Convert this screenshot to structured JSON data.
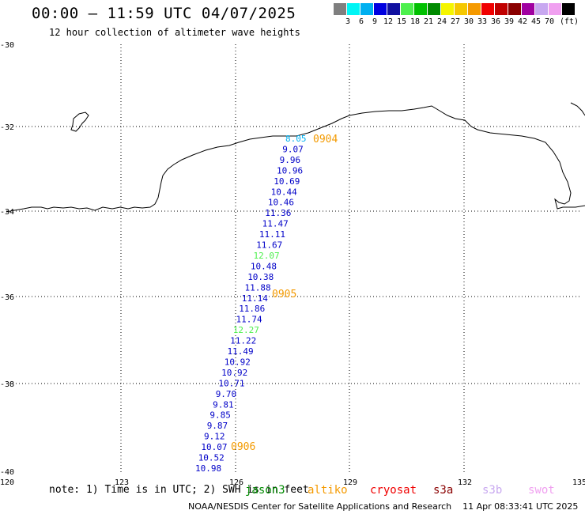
{
  "header": {
    "title": "00:00 – 11:59 UTC 04/07/2025",
    "subtitle": "12 hour collection of altimeter wave heights"
  },
  "color_scale": {
    "unit": "(ft)",
    "swatches": [
      {
        "color": "#7f7f7f",
        "label": ""
      },
      {
        "color": "#00f5f5",
        "label": "3"
      },
      {
        "color": "#00b0f0",
        "label": "6"
      },
      {
        "color": "#0000e0",
        "label": "9"
      },
      {
        "color": "#1010a0",
        "label": "12"
      },
      {
        "color": "#4cf04c",
        "label": "15"
      },
      {
        "color": "#00c000",
        "label": "18"
      },
      {
        "color": "#008a00",
        "label": "21"
      },
      {
        "color": "#f5f500",
        "label": "24"
      },
      {
        "color": "#f5c800",
        "label": "27"
      },
      {
        "color": "#f59a00",
        "label": "30"
      },
      {
        "color": "#f00000",
        "label": "33"
      },
      {
        "color": "#c00000",
        "label": "36"
      },
      {
        "color": "#8a0000",
        "label": "39"
      },
      {
        "color": "#a000a0",
        "label": "42"
      },
      {
        "color": "#c8a8f0",
        "label": "45"
      },
      {
        "color": "#f0a0f0",
        "label": "70"
      },
      {
        "color": "#000000",
        "label": ""
      }
    ]
  },
  "axes": {
    "lon_ticks": [
      "120",
      "123",
      "126",
      "129",
      "132",
      "135"
    ],
    "lat_ticks": [
      "-30",
      "-32",
      "-34",
      "-36",
      "-38",
      "-40"
    ]
  },
  "wave_heights": [
    {
      "value": "8.05",
      "color": "#00b0f0"
    },
    {
      "value": "9.07",
      "color": "#0000c8"
    },
    {
      "value": "9.96",
      "color": "#0000c8"
    },
    {
      "value": "10.96",
      "color": "#0000c8"
    },
    {
      "value": "10.69",
      "color": "#0000c8"
    },
    {
      "value": "10.44",
      "color": "#0000c8"
    },
    {
      "value": "10.46",
      "color": "#0000c8"
    },
    {
      "value": "11.36",
      "color": "#0000c8"
    },
    {
      "value": "11.47",
      "color": "#0000c8"
    },
    {
      "value": "11.11",
      "color": "#0000c8"
    },
    {
      "value": "11.67",
      "color": "#0000c8"
    },
    {
      "value": "12.07",
      "color": "#4cf04c"
    },
    {
      "value": "10.48",
      "color": "#0000c8"
    },
    {
      "value": "10.38",
      "color": "#0000c8"
    },
    {
      "value": "11.88",
      "color": "#0000c8"
    },
    {
      "value": "11.14",
      "color": "#0000c8"
    },
    {
      "value": "11.86",
      "color": "#0000c8"
    },
    {
      "value": "11.74",
      "color": "#0000c8"
    },
    {
      "value": "12.27",
      "color": "#4cf04c"
    },
    {
      "value": "11.22",
      "color": "#0000c8"
    },
    {
      "value": "11.49",
      "color": "#0000c8"
    },
    {
      "value": "10.92",
      "color": "#0000c8"
    },
    {
      "value": "10.92",
      "color": "#0000c8"
    },
    {
      "value": "10.71",
      "color": "#0000c8"
    },
    {
      "value": "9.70",
      "color": "#0000c8"
    },
    {
      "value": "9.81",
      "color": "#0000c8"
    },
    {
      "value": "9.85",
      "color": "#0000c8"
    },
    {
      "value": "9.87",
      "color": "#0000c8"
    },
    {
      "value": "9.12",
      "color": "#0000c8"
    },
    {
      "value": "10.07",
      "color": "#0000c8"
    },
    {
      "value": "10.52",
      "color": "#0000c8"
    },
    {
      "value": "10.98",
      "color": "#0000c8"
    }
  ],
  "time_labels": [
    "0904",
    "0905",
    "0906"
  ],
  "notes": {
    "note_text": "note: 1) Time is in UTC; 2) SWH is in feet",
    "satellites": [
      {
        "name": "jason3",
        "color": "#008a00"
      },
      {
        "name": "altiko",
        "color": "#f59a00"
      },
      {
        "name": "cryosat",
        "color": "#f00000"
      },
      {
        "name": "s3a",
        "color": "#8a0000"
      },
      {
        "name": "s3b",
        "color": "#c8a8f0"
      },
      {
        "name": "swot",
        "color": "#f0a0f0"
      }
    ],
    "credit": "NOAA/NESDIS Center for Satellite Applications and Research",
    "generated": "11 Apr 08:33:41 UTC 2025"
  }
}
